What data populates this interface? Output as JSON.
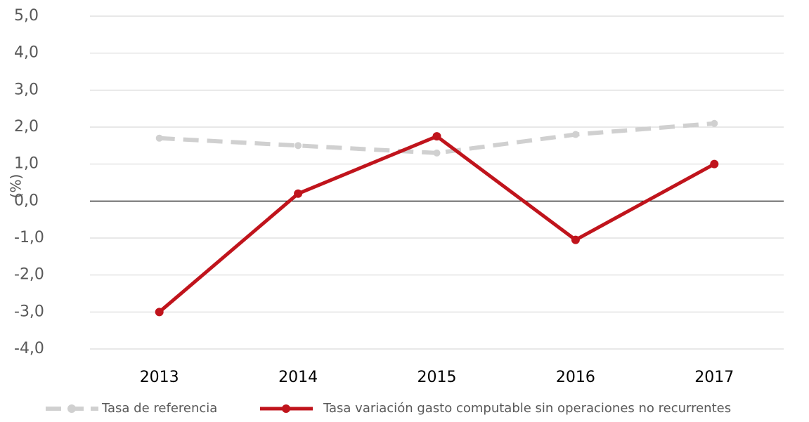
{
  "chart_data": {
    "type": "line",
    "y_label": "(%)",
    "categories": [
      "2013",
      "2014",
      "2015",
      "2016",
      "2017"
    ],
    "series": [
      {
        "name": "Tasa de referencia",
        "color": "#d0d0d0",
        "dashed": true,
        "values": [
          1.7,
          1.5,
          1.3,
          1.8,
          2.1
        ]
      },
      {
        "name": "Tasa variación gasto computable sin operaciones no recurrentes",
        "color": "#c0141c",
        "dashed": false,
        "values": [
          -3.0,
          0.2,
          1.75,
          -1.05,
          1.0
        ]
      }
    ],
    "ylim": [
      -4,
      5
    ],
    "yticks": [
      {
        "value": 5,
        "label": "5,0"
      },
      {
        "value": 4,
        "label": "4,0"
      },
      {
        "value": 3,
        "label": "3,0"
      },
      {
        "value": 2,
        "label": "2,0"
      },
      {
        "value": 1,
        "label": "1,0"
      },
      {
        "value": 0,
        "label": "0,0"
      },
      {
        "value": -1,
        "label": "-1,0"
      },
      {
        "value": -2,
        "label": "-2,0"
      },
      {
        "value": -3,
        "label": "-3,0"
      },
      {
        "value": -4,
        "label": "-4,0"
      }
    ],
    "grid": true,
    "legend": "bottom"
  }
}
